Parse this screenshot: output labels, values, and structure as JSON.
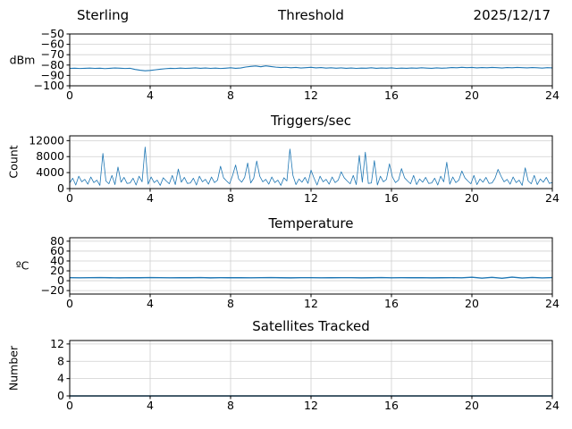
{
  "header": {
    "left": "Sterling",
    "right": "2025/12/17"
  },
  "style": {
    "line_color": "#1f77b4",
    "grid_color": "#cfcfcf",
    "spine_color": "#000000",
    "background": "#ffffff"
  },
  "chart_data": [
    {
      "type": "line",
      "title": "Threshold",
      "xlabel": "",
      "ylabel": "dBm",
      "xlim": [
        0,
        24
      ],
      "xticks": [
        0,
        4,
        8,
        12,
        16,
        20,
        24
      ],
      "ylim": [
        -100,
        -50
      ],
      "yticks": [
        -100,
        -90,
        -80,
        -70,
        -60,
        -50
      ],
      "x_start": 0,
      "x_step": 0.25,
      "line_width": 1.1,
      "values": [
        -83.2,
        -83.0,
        -83.3,
        -83.1,
        -82.9,
        -83.2,
        -83.0,
        -83.4,
        -83.1,
        -82.8,
        -83.0,
        -83.3,
        -83.1,
        -84.2,
        -85.0,
        -85.5,
        -85.2,
        -84.6,
        -84.0,
        -83.5,
        -83.1,
        -83.3,
        -82.9,
        -83.2,
        -83.0,
        -82.7,
        -83.1,
        -82.8,
        -83.2,
        -82.9,
        -83.3,
        -83.0,
        -82.6,
        -83.1,
        -82.8,
        -81.9,
        -81.3,
        -80.9,
        -81.6,
        -80.8,
        -81.4,
        -82.0,
        -82.4,
        -82.1,
        -82.6,
        -82.3,
        -82.8,
        -82.5,
        -82.2,
        -82.7,
        -82.4,
        -82.9,
        -82.6,
        -83.0,
        -82.7,
        -83.1,
        -82.8,
        -83.2,
        -82.9,
        -83.0,
        -82.6,
        -83.1,
        -82.8,
        -83.0,
        -82.7,
        -83.2,
        -82.9,
        -83.1,
        -82.8,
        -83.0,
        -82.6,
        -82.9,
        -83.1,
        -82.7,
        -83.0,
        -82.8,
        -82.4,
        -82.6,
        -82.2,
        -82.5,
        -82.3,
        -82.7,
        -82.4,
        -82.6,
        -82.3,
        -82.5,
        -82.8,
        -82.4,
        -82.6,
        -82.3,
        -82.5,
        -82.7,
        -82.4,
        -82.6,
        -82.9,
        -82.5,
        -82.7
      ]
    },
    {
      "type": "line",
      "title": "Triggers/sec",
      "xlabel": "",
      "ylabel": "Count",
      "xlim": [
        0,
        24
      ],
      "xticks": [
        0,
        4,
        8,
        12,
        16,
        20,
        24
      ],
      "ylim": [
        0,
        13200
      ],
      "yticks": [
        0,
        4000,
        8000,
        12000
      ],
      "x_start": 0,
      "x_step": 0.15,
      "line_width": 0.8,
      "values": [
        1400,
        2600,
        900,
        3100,
        1700,
        2300,
        1100,
        2900,
        1500,
        2100,
        800,
        8800,
        1900,
        1200,
        3300,
        1000,
        5400,
        1600,
        2800,
        1300,
        1400,
        2600,
        900,
        3100,
        1700,
        10400,
        1100,
        2900,
        1500,
        2100,
        800,
        2700,
        1900,
        1200,
        3300,
        1000,
        4900,
        1600,
        2800,
        1300,
        1400,
        2600,
        900,
        3100,
        1700,
        2300,
        1100,
        2900,
        1500,
        2100,
        5600,
        2700,
        1900,
        1200,
        3300,
        5900,
        2400,
        1600,
        2800,
        6400,
        1400,
        2600,
        6900,
        3100,
        1700,
        2300,
        1100,
        2900,
        1500,
        2100,
        800,
        2700,
        1900,
        9900,
        3300,
        1000,
        2400,
        1600,
        2800,
        1300,
        4600,
        2600,
        900,
        3100,
        1700,
        2300,
        1100,
        2900,
        1500,
        2100,
        4200,
        2700,
        1900,
        1200,
        3300,
        1000,
        8300,
        1600,
        9100,
        1300,
        1400,
        7000,
        900,
        3100,
        1700,
        2300,
        6200,
        2900,
        1500,
        2100,
        5000,
        2700,
        1900,
        1200,
        3300,
        1000,
        2400,
        1600,
        2800,
        1300,
        1400,
        2600,
        900,
        3100,
        1700,
        6600,
        1100,
        2900,
        1500,
        2100,
        4400,
        2700,
        1900,
        1200,
        3300,
        1000,
        2400,
        1600,
        2800,
        1300,
        1400,
        2600,
        4800,
        3100,
        1700,
        2300,
        1100,
        2900,
        1500,
        2100,
        800,
        5200,
        1900,
        1200,
        3300,
        1000,
        2400,
        1600,
        2800,
        1300,
        1500
      ]
    },
    {
      "type": "line",
      "title": "Temperature",
      "xlabel": "",
      "ylabel": "ºC",
      "xlim": [
        0,
        24
      ],
      "xticks": [
        0,
        4,
        8,
        12,
        16,
        20,
        24
      ],
      "ylim": [
        -27,
        87
      ],
      "yticks": [
        -20,
        0,
        20,
        40,
        60,
        80
      ],
      "x_start": 0,
      "x_step": 0.5,
      "line_width": 1.4,
      "values": [
        6.2,
        5.9,
        6.1,
        6.3,
        6.0,
        5.8,
        6.2,
        6.0,
        6.4,
        6.1,
        5.9,
        6.2,
        6.0,
        6.3,
        5.8,
        6.1,
        6.0,
        6.2,
        5.9,
        6.1,
        6.3,
        6.0,
        5.8,
        6.2,
        6.1,
        5.9,
        6.0,
        6.2,
        6.1,
        5.8,
        6.0,
        6.3,
        5.9,
        6.1,
        6.0,
        6.2,
        5.8,
        6.0,
        6.1,
        5.9,
        7.0,
        5.2,
        6.8,
        5.0,
        7.2,
        5.4,
        6.6,
        5.6,
        6.3
      ]
    },
    {
      "type": "line",
      "title": "Satellites Tracked",
      "xlabel": "",
      "ylabel": "Number",
      "xlim": [
        0,
        24
      ],
      "xticks": [
        0,
        4,
        8,
        12,
        16,
        20,
        24
      ],
      "ylim": [
        0,
        12.8
      ],
      "yticks": [
        0,
        4,
        8,
        12
      ],
      "x_start": 0,
      "x_step": 1,
      "line_width": 1.4,
      "values": [
        0,
        0,
        0,
        0,
        0,
        0,
        0,
        0,
        0,
        0,
        0,
        0,
        0,
        0,
        0,
        0,
        0,
        0,
        0,
        0,
        0,
        0,
        0,
        0,
        0
      ]
    }
  ]
}
